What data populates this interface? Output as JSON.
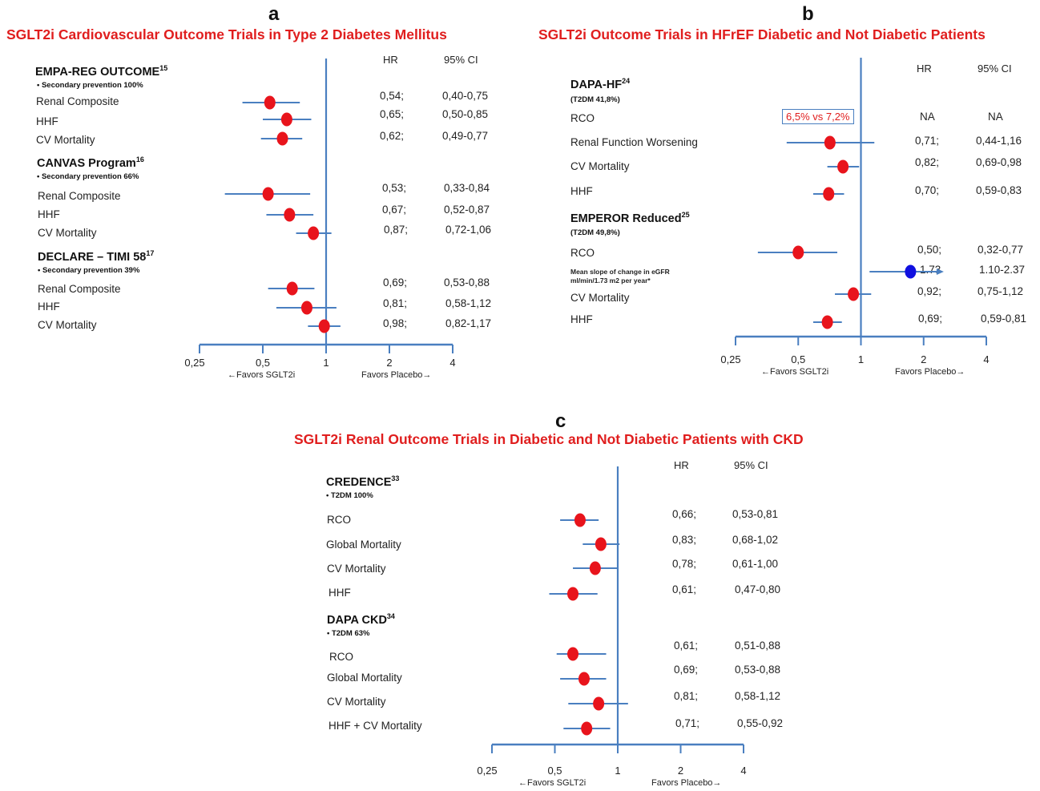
{
  "panels": [
    {
      "letter": "a",
      "title": "SGLT2i Cardiovascular Outcome Trials in Type 2 Diabetes Mellitus",
      "hr_header": "HR",
      "ci_header": "95%   CI",
      "favors_left": "←Favors SGLT2i",
      "favors_right": "Favors Placebo→",
      "groups": [
        {
          "title": "EMPA-REG OUTCOME",
          "sup": "15",
          "sub": "•    Secondary prevention 100%"
        },
        {
          "title": "CANVAS Program",
          "sup": "16",
          "sub": "•    Secondary prevention 66%"
        },
        {
          "title": "DECLARE – TIMI 58",
          "sup": "17",
          "sub": "•    Secondary prevention 39%"
        }
      ],
      "rows": [
        {
          "label": "Renal Composite",
          "hr": "0,54;",
          "ci": "0,40-0,75"
        },
        {
          "label": "HHF",
          "hr": "0,65;",
          "ci": "0,50-0,85"
        },
        {
          "label": "CV Mortality",
          "hr": "0,62;",
          "ci": "0,49-0,77"
        },
        {
          "label": "Renal Composite",
          "hr": "0,53;",
          "ci": "0,33-0,84"
        },
        {
          "label": "HHF",
          "hr": "0,67;",
          "ci": "0,52-0,87"
        },
        {
          "label": "CV Mortality",
          "hr": "0,87;",
          "ci": "0,72-1,06"
        },
        {
          "label": "Renal Composite",
          "hr": "0,69;",
          "ci": "0,53-0,88"
        },
        {
          "label": "HHF",
          "hr": "0,81;",
          "ci": "0,58-1,12"
        },
        {
          "label": "CV Mortality",
          "hr": "0,98;",
          "ci": "0,82-1,17"
        }
      ]
    },
    {
      "letter": "b",
      "title": "SGLT2i Outcome Trials in HFrEF Diabetic and Not Diabetic Patients",
      "hr_header": "HR",
      "ci_header": "95%   CI",
      "favors_left": "←Favors SGLT2i",
      "favors_right": "Favors Placebo→",
      "note": "6,5% vs 7,2%",
      "groups": [
        {
          "title": "DAPA-HF",
          "sup": "24",
          "sub": "(T2DM 41,8%)"
        },
        {
          "title": "EMPEROR Reduced",
          "sup": "25",
          "sub": "(T2DM 49,8%)"
        }
      ],
      "rows": [
        {
          "label": "RCO",
          "hr": "NA",
          "ci": "NA"
        },
        {
          "label": "Renal Function Worsening",
          "hr": "0,71;",
          "ci": "0,44-1,16"
        },
        {
          "label": "CV Mortality",
          "hr": "0,82;",
          "ci": "0,69-0,98"
        },
        {
          "label": "HHF",
          "hr": "0,70;",
          "ci": "0,59-0,83"
        },
        {
          "label": "RCO",
          "hr": "0,50;",
          "ci": "0,32-0,77"
        },
        {
          "label": "Mean slope of change in eGFR ml/min/1.73 m2 per year*",
          "hr": "1.73",
          "ci": "1.10-2.37"
        },
        {
          "label": "CV Mortality",
          "hr": "0,92;",
          "ci": "0,75-1,12"
        },
        {
          "label": "HHF",
          "hr": "0,69;",
          "ci": "0,59-0,81"
        }
      ]
    },
    {
      "letter": "c",
      "title": "SGLT2i Renal Outcome Trials in Diabetic and Not Diabetic Patients with CKD",
      "hr_header": "HR",
      "ci_header": "95%   CI",
      "favors_left": "←Favors SGLT2i",
      "favors_right": "Favors Placebo→",
      "groups": [
        {
          "title": "CREDENCE",
          "sup": "33",
          "sub": "•    T2DM 100%"
        },
        {
          "title": "DAPA CKD",
          "sup": "34",
          "sub": "•    T2DM 63%"
        }
      ],
      "rows": [
        {
          "label": "RCO",
          "hr": "0,66;",
          "ci": "0,53-0,81"
        },
        {
          "label": "Global Mortality",
          "hr": "0,83;",
          "ci": "0,68-1,02"
        },
        {
          "label": "CV Mortality",
          "hr": "0,78;",
          "ci": "0,61-1,00"
        },
        {
          "label": "HHF",
          "hr": "0,61;",
          "ci": "0,47-0,80"
        },
        {
          "label": "RCO",
          "hr": "0,61;",
          "ci": "0,51-0,88"
        },
        {
          "label": "Global Mortality",
          "hr": "0,69;",
          "ci": "0,53-0,88"
        },
        {
          "label": "CV Mortality",
          "hr": "0,81;",
          "ci": "0,58-1,12"
        },
        {
          "label": "HHF  + CV Mortality",
          "hr": "0,71;",
          "ci": "0,55-0,92"
        }
      ]
    }
  ],
  "chart_data": [
    {
      "type": "scatter",
      "title": "SGLT2i Cardiovascular Outcome Trials in Type 2 Diabetes Mellitus",
      "x_scale": "log2",
      "xlim": [
        0.25,
        4
      ],
      "x_ticks": [
        "0,25",
        "0,5",
        "1",
        "2",
        "4"
      ],
      "reference_line": 1,
      "point_color": "#e8141c",
      "series": [
        {
          "name": "EMPA-REG OUTCOME",
          "points": [
            {
              "label": "Renal Composite",
              "hr": 0.54,
              "lo": 0.4,
              "hi": 0.75
            },
            {
              "label": "HHF",
              "hr": 0.65,
              "lo": 0.5,
              "hi": 0.85
            },
            {
              "label": "CV Mortality",
              "hr": 0.62,
              "lo": 0.49,
              "hi": 0.77
            }
          ]
        },
        {
          "name": "CANVAS Program",
          "points": [
            {
              "label": "Renal Composite",
              "hr": 0.53,
              "lo": 0.33,
              "hi": 0.84
            },
            {
              "label": "HHF",
              "hr": 0.67,
              "lo": 0.52,
              "hi": 0.87
            },
            {
              "label": "CV Mortality",
              "hr": 0.87,
              "lo": 0.72,
              "hi": 1.06
            }
          ]
        },
        {
          "name": "DECLARE – TIMI 58",
          "points": [
            {
              "label": "Renal Composite",
              "hr": 0.69,
              "lo": 0.53,
              "hi": 0.88
            },
            {
              "label": "HHF",
              "hr": 0.81,
              "lo": 0.58,
              "hi": 1.12
            },
            {
              "label": "CV Mortality",
              "hr": 0.98,
              "lo": 0.82,
              "hi": 1.17
            }
          ]
        }
      ]
    },
    {
      "type": "scatter",
      "title": "SGLT2i Outcome Trials in HFrEF Diabetic and Not Diabetic Patients",
      "x_scale": "log2",
      "xlim": [
        0.25,
        4
      ],
      "x_ticks": [
        "0,25",
        "0,5",
        "1",
        "2",
        "4"
      ],
      "reference_line": 1,
      "point_color": "#e8141c",
      "highlight_color": "#1010e0",
      "series": [
        {
          "name": "DAPA-HF",
          "points": [
            {
              "label": "RCO",
              "hr": null,
              "lo": null,
              "hi": null
            },
            {
              "label": "Renal Function Worsening",
              "hr": 0.71,
              "lo": 0.44,
              "hi": 1.16
            },
            {
              "label": "CV Mortality",
              "hr": 0.82,
              "lo": 0.69,
              "hi": 0.98
            },
            {
              "label": "HHF",
              "hr": 0.7,
              "lo": 0.59,
              "hi": 0.83
            }
          ]
        },
        {
          "name": "EMPEROR Reduced",
          "points": [
            {
              "label": "RCO",
              "hr": 0.5,
              "lo": 0.32,
              "hi": 0.77
            },
            {
              "label": "Mean slope of change in eGFR ml/min/1.73 m2 per year*",
              "hr": 1.73,
              "lo": 1.1,
              "hi": 2.37,
              "highlight": true
            },
            {
              "label": "CV Mortality",
              "hr": 0.92,
              "lo": 0.75,
              "hi": 1.12
            },
            {
              "label": "HHF",
              "hr": 0.69,
              "lo": 0.59,
              "hi": 0.81
            }
          ]
        }
      ]
    },
    {
      "type": "scatter",
      "title": "SGLT2i Renal Outcome Trials in Diabetic and Not Diabetic Patients with CKD",
      "x_scale": "log2",
      "xlim": [
        0.25,
        4
      ],
      "x_ticks": [
        "0,25",
        "0,5",
        "1",
        "2",
        "4"
      ],
      "reference_line": 1,
      "point_color": "#e8141c",
      "series": [
        {
          "name": "CREDENCE",
          "points": [
            {
              "label": "RCO",
              "hr": 0.66,
              "lo": 0.53,
              "hi": 0.81
            },
            {
              "label": "Global Mortality",
              "hr": 0.83,
              "lo": 0.68,
              "hi": 1.02
            },
            {
              "label": "CV Mortality",
              "hr": 0.78,
              "lo": 0.61,
              "hi": 1.0
            },
            {
              "label": "HHF",
              "hr": 0.61,
              "lo": 0.47,
              "hi": 0.8
            }
          ]
        },
        {
          "name": "DAPA CKD",
          "points": [
            {
              "label": "RCO",
              "hr": 0.61,
              "lo": 0.51,
              "hi": 0.88
            },
            {
              "label": "Global Mortality",
              "hr": 0.69,
              "lo": 0.53,
              "hi": 0.88
            },
            {
              "label": "CV Mortality",
              "hr": 0.81,
              "lo": 0.58,
              "hi": 1.12
            },
            {
              "label": "HHF  + CV Mortality",
              "hr": 0.71,
              "lo": 0.55,
              "hi": 0.92
            }
          ]
        }
      ]
    }
  ]
}
